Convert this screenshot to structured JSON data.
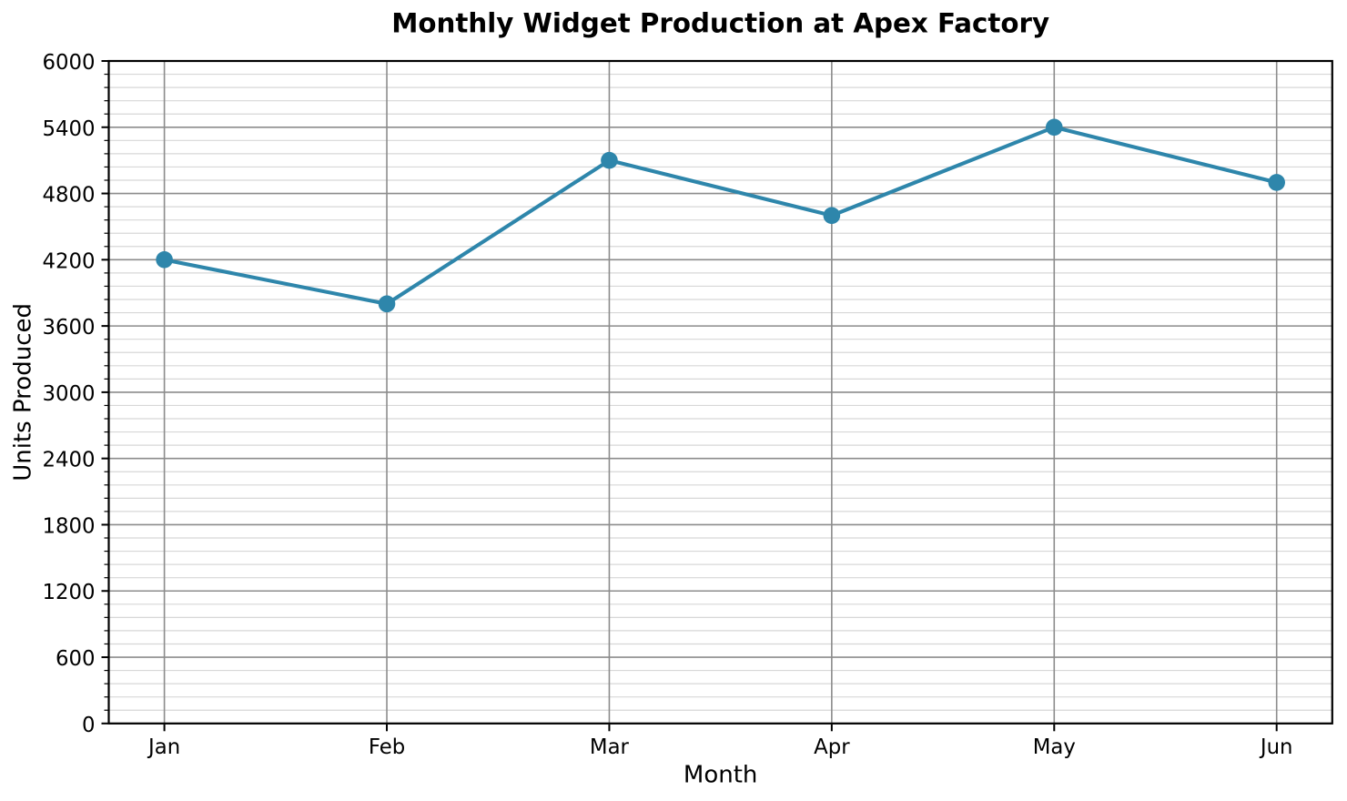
{
  "chart_data": {
    "type": "line",
    "title": "Monthly Widget Production at Apex Factory",
    "xlabel": "Month",
    "ylabel": "Units Produced",
    "categories": [
      "Jan",
      "Feb",
      "Mar",
      "Apr",
      "May",
      "Jun"
    ],
    "series": [
      {
        "name": "Units Produced",
        "values": [
          4200,
          3800,
          5100,
          4600,
          5400,
          4900
        ]
      }
    ],
    "ylim": [
      0,
      6000
    ],
    "yticks": [
      0,
      600,
      1200,
      1800,
      2400,
      3000,
      3600,
      4200,
      4800,
      5400,
      6000
    ],
    "y_minor_step": 120,
    "grid": {
      "major": true,
      "minor_y": true
    },
    "legend_position": "none",
    "colors": {
      "line": "#2E86AB",
      "marker": "#2E86AB",
      "major_grid": "#8c8c8c",
      "minor_grid": "#d7d7d7",
      "axis": "#000000",
      "background": "#ffffff"
    }
  }
}
